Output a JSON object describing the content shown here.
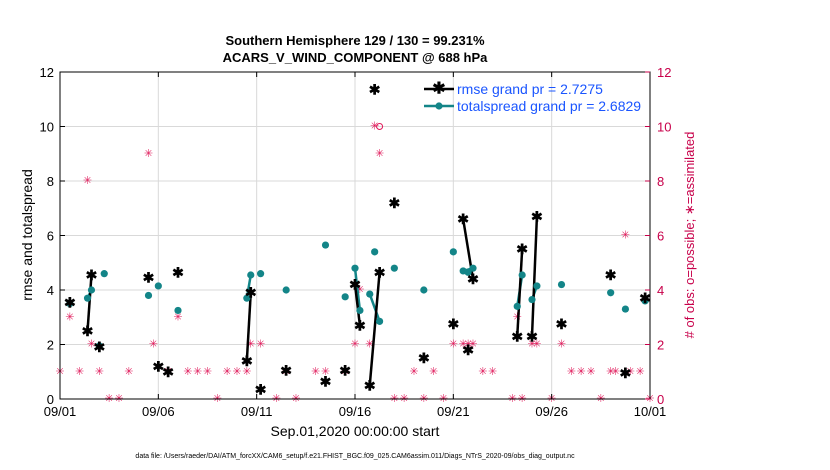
{
  "colors": {
    "rmse": "#000000",
    "spread": "#138588",
    "obs": "#e0195a",
    "axis_right": "#c8004a",
    "legend_text": "#1a55ff",
    "grid": "#d9d9d9"
  },
  "chart_data": {
    "type": "line",
    "title_line1": "Southern Hemisphere 129 / 130 = 99.231%",
    "title_line2": "ACARS_V_WIND_COMPONENT @ 688 hPa",
    "xlabel": "Sep.01,2020 00:00:00 start",
    "ylabel_left": "rmse and totalspread",
    "ylabel_right": "# of obs: o=possible; ∗=assimilated",
    "xlim": [
      0,
      30
    ],
    "ylim_left": [
      0,
      12
    ],
    "ylim_right": [
      0,
      12
    ],
    "x_ticks": [
      0,
      5,
      10,
      15,
      20,
      25,
      30
    ],
    "x_tick_labels": [
      "09/01",
      "09/06",
      "09/11",
      "09/16",
      "09/21",
      "09/26",
      "10/01"
    ],
    "y_ticks": [
      "0",
      "2",
      "4",
      "6",
      "8",
      "10",
      "12"
    ],
    "y_ticks_right": [
      "0",
      "2",
      "4",
      "6",
      "8",
      "10",
      "12"
    ],
    "legend": {
      "rmse_label": "rmse grand pr = 2.7275",
      "spread_label": "totalspread grand pr = 2.6829",
      "position": "top-right"
    },
    "series": [
      {
        "name": "rmse",
        "points": [
          [
            0.5,
            3.55
          ],
          [
            1.4,
            2.5
          ],
          [
            1.6,
            4.55
          ],
          [
            2.0,
            1.9
          ],
          [
            4.5,
            4.45
          ],
          [
            5.0,
            1.2
          ],
          [
            5.5,
            1.0
          ],
          [
            6.0,
            4.65
          ],
          [
            9.5,
            1.4
          ],
          [
            9.7,
            3.9
          ],
          [
            10.2,
            0.35
          ],
          [
            11.5,
            1.05
          ],
          [
            13.5,
            0.65
          ],
          [
            14.5,
            1.05
          ],
          [
            15.0,
            4.2
          ],
          [
            15.25,
            2.7
          ],
          [
            15.75,
            0.5
          ],
          [
            16.0,
            11.35
          ],
          [
            16.25,
            4.65
          ],
          [
            17.0,
            7.2
          ],
          [
            18.5,
            1.5
          ],
          [
            20.0,
            2.75
          ],
          [
            20.5,
            6.6
          ],
          [
            20.75,
            1.8
          ],
          [
            21.0,
            4.4
          ],
          [
            23.25,
            2.3
          ],
          [
            23.5,
            5.5
          ],
          [
            24.0,
            2.3
          ],
          [
            24.25,
            6.7
          ],
          [
            25.5,
            2.75
          ],
          [
            28.0,
            4.55
          ],
          [
            28.75,
            0.95
          ],
          [
            29.75,
            3.7
          ]
        ],
        "segments": [
          [
            1.4,
            1.6
          ],
          [
            9.5,
            9.7
          ],
          [
            15.0,
            15.25
          ],
          [
            15.75,
            16.25
          ],
          [
            20.5,
            21.0
          ],
          [
            23.25,
            23.5
          ],
          [
            24.0,
            24.25
          ]
        ]
      },
      {
        "name": "totalspread",
        "points": [
          [
            0.5,
            3.5
          ],
          [
            1.4,
            3.7
          ],
          [
            1.6,
            4.0
          ],
          [
            2.0,
            1.95
          ],
          [
            2.25,
            4.6
          ],
          [
            4.5,
            3.8
          ],
          [
            5.0,
            4.15
          ],
          [
            6.0,
            3.25
          ],
          [
            9.5,
            3.7
          ],
          [
            9.7,
            4.55
          ],
          [
            10.2,
            4.6
          ],
          [
            11.5,
            4.0
          ],
          [
            13.5,
            5.65
          ],
          [
            14.5,
            3.75
          ],
          [
            15.0,
            4.8
          ],
          [
            15.25,
            3.25
          ],
          [
            15.75,
            3.85
          ],
          [
            16.0,
            5.4
          ],
          [
            16.25,
            2.85
          ],
          [
            17.0,
            4.8
          ],
          [
            18.5,
            4.0
          ],
          [
            20.0,
            5.4
          ],
          [
            20.5,
            4.7
          ],
          [
            20.75,
            4.65
          ],
          [
            21.0,
            4.8
          ],
          [
            23.25,
            3.4
          ],
          [
            23.5,
            4.55
          ],
          [
            24.0,
            3.65
          ],
          [
            24.25,
            4.15
          ],
          [
            25.5,
            4.2
          ],
          [
            28.0,
            3.9
          ],
          [
            28.75,
            3.3
          ],
          [
            29.75,
            3.6
          ]
        ],
        "segments": [
          [
            1.4,
            1.6
          ],
          [
            9.5,
            9.7
          ],
          [
            15.0,
            15.25
          ],
          [
            15.75,
            16.25
          ],
          [
            20.5,
            21.0
          ],
          [
            23.25,
            23.5
          ],
          [
            24.0,
            24.25
          ]
        ]
      },
      {
        "name": "num_obs",
        "points": [
          [
            0.0,
            1
          ],
          [
            0.5,
            3
          ],
          [
            1.0,
            1
          ],
          [
            1.4,
            8
          ],
          [
            1.6,
            2
          ],
          [
            2.0,
            1
          ],
          [
            2.5,
            0
          ],
          [
            3.0,
            0
          ],
          [
            3.5,
            1
          ],
          [
            4.5,
            9
          ],
          [
            4.75,
            2
          ],
          [
            5.5,
            1
          ],
          [
            6.0,
            3
          ],
          [
            6.5,
            1
          ],
          [
            7.0,
            1
          ],
          [
            7.5,
            1
          ],
          [
            8.0,
            0
          ],
          [
            8.5,
            1
          ],
          [
            9.0,
            1
          ],
          [
            9.5,
            1
          ],
          [
            9.7,
            2
          ],
          [
            10.2,
            2
          ],
          [
            11.0,
            0
          ],
          [
            11.5,
            1
          ],
          [
            12.0,
            0
          ],
          [
            13.0,
            1
          ],
          [
            13.5,
            1
          ],
          [
            14.5,
            1
          ],
          [
            15.0,
            2
          ],
          [
            15.25,
            4
          ],
          [
            15.75,
            2
          ],
          [
            16.0,
            10
          ],
          [
            16.25,
            9
          ],
          [
            17.0,
            0
          ],
          [
            17.5,
            0
          ],
          [
            18.0,
            1
          ],
          [
            18.5,
            0
          ],
          [
            19.0,
            1
          ],
          [
            19.5,
            0
          ],
          [
            20.0,
            2
          ],
          [
            20.5,
            2
          ],
          [
            20.75,
            2
          ],
          [
            21.0,
            2
          ],
          [
            21.5,
            1
          ],
          [
            22.0,
            1
          ],
          [
            23.0,
            0
          ],
          [
            23.25,
            3
          ],
          [
            23.5,
            0
          ],
          [
            24.0,
            2
          ],
          [
            24.25,
            2
          ],
          [
            25.0,
            0
          ],
          [
            25.5,
            2
          ],
          [
            26.0,
            1
          ],
          [
            26.5,
            1
          ],
          [
            27.0,
            1
          ],
          [
            27.5,
            0
          ],
          [
            28.0,
            1
          ],
          [
            28.25,
            1
          ],
          [
            28.75,
            6
          ],
          [
            29.0,
            1
          ],
          [
            29.5,
            1
          ],
          [
            30.0,
            0
          ]
        ]
      }
    ]
  },
  "footer": "data file: /Users/raeder/DAI/ATM_forcXX/CAM6_setup/f.e21.FHIST_BGC.f09_025.CAM6assim.011/Diags_NTrS_2020-09/obs_diag_output.nc"
}
